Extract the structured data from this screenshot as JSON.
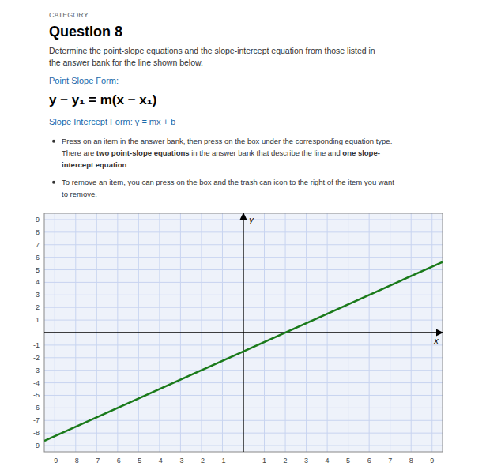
{
  "chart_data": {
    "type": "line",
    "title": "Question 8",
    "annotations": [
      [
        "CATEGORY"
      ],
      [
        "Determine the point-slope equations and the slope-intercept equation from those listed in"
      ],
      [
        "the answer bank for the line shown below."
      ],
      [
        "Point Slope Form: "
      ],
      [
        "y − y₁ = m(x − x₁)"
      ],
      [
        "Slope Intercept Form: y = mx + b"
      ],
      [
        "Press on an item in the answer bank, then press on the box under the corresponding equation type."
      ],
      [
        "There are ",
        "two point-slope equations",
        " in the answer bank that describe the line and ",
        "one slope-"
      ],
      [
        "intercept equation",
        "."
      ],
      [
        "To remove an item, you can press on the box and the trash can icon to the right of the item you want"
      ],
      [
        "to remove."
      ]
    ],
    "x_label": "x",
    "y_label": "y",
    "x": [
      -9.5,
      9.5
    ],
    "values": [
      -8.625,
      5.625
    ],
    "color": "#1a7a1a",
    "xlim": [
      -9.5,
      9.5
    ],
    "ylim": [
      -9.5,
      9.5
    ],
    "xticks": [
      -9,
      -8,
      -7,
      -6,
      -5,
      -4,
      -3,
      -2,
      -1,
      1,
      2,
      3,
      4,
      5,
      6,
      7,
      8,
      9
    ],
    "yticks": [
      -9,
      -8,
      -7,
      -6,
      -5,
      -4,
      -3,
      -2,
      -1,
      1,
      2,
      3,
      4,
      5,
      6,
      7,
      8,
      9
    ],
    "grid": true
  }
}
